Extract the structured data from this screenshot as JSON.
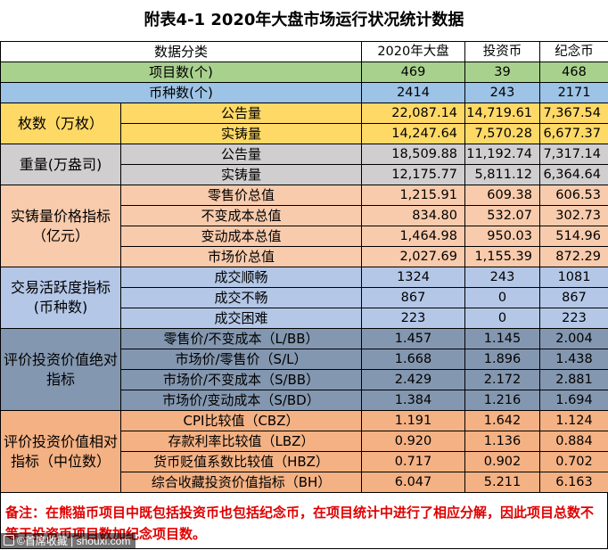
{
  "title": "附表4-1  2020年大盘市场运行状况统计数据",
  "header": {
    "category": "数据分类",
    "col1": "2020年大盘",
    "col2": "投资币",
    "col3": "纪念币"
  },
  "rows": {
    "project_count": {
      "label": "项目数(个)",
      "v": [
        "469",
        "39",
        "468"
      ]
    },
    "variety_count": {
      "label": "币种数(个)",
      "v": [
        "2414",
        "243",
        "2171"
      ]
    },
    "pieces": {
      "group": "枚数（万枚）",
      "announced": {
        "label": "公告量",
        "v": [
          "22,087.14",
          "14,719.61",
          "7,367.54"
        ]
      },
      "minted": {
        "label": "实铸量",
        "v": [
          "14,247.64",
          "7,570.28",
          "6,677.37"
        ]
      }
    },
    "weight": {
      "group": "重量(万盎司)",
      "announced": {
        "label": "公告量",
        "v": [
          "18,509.88",
          "11,192.74",
          "7,317.14"
        ]
      },
      "minted": {
        "label": "实铸量",
        "v": [
          "12,175.77",
          "5,811.12",
          "6,364.64"
        ]
      }
    },
    "price": {
      "group": "实铸量价格指标（亿元）",
      "retail": {
        "label": "零售价总值",
        "v": [
          "1,215.91",
          "609.38",
          "606.53"
        ]
      },
      "fixed_cost": {
        "label": "不变成本总值",
        "v": [
          "834.80",
          "532.07",
          "302.73"
        ]
      },
      "var_cost": {
        "label": "变动成本总值",
        "v": [
          "1,464.98",
          "950.03",
          "514.96"
        ]
      },
      "market": {
        "label": "市场价总值",
        "v": [
          "2,027.69",
          "1,155.39",
          "872.29"
        ]
      }
    },
    "activity": {
      "group": "交易活跃度指标(币种数)",
      "smooth": {
        "label": "成交顺畅",
        "v": [
          "1324",
          "243",
          "1081"
        ]
      },
      "not_smooth": {
        "label": "成交不畅",
        "v": [
          "867",
          "0",
          "867"
        ]
      },
      "difficult": {
        "label": "成交困难",
        "v": [
          "223",
          "0",
          "223"
        ]
      }
    },
    "absolute": {
      "group": "评价投资价值绝对指标",
      "lbb": {
        "label": "零售价/不变成本（L/BB）",
        "v": [
          "1.457",
          "1.145",
          "2.004"
        ]
      },
      "sl": {
        "label": "市场价/零售价（S/L）",
        "v": [
          "1.668",
          "1.896",
          "1.438"
        ]
      },
      "sbb": {
        "label": "市场价/不变成本（S/BB）",
        "v": [
          "2.429",
          "2.172",
          "2.881"
        ]
      },
      "sbd": {
        "label": "市场价/变动成本（S/BD）",
        "v": [
          "1.384",
          "1.216",
          "1.694"
        ]
      }
    },
    "relative": {
      "group": "评价投资价值相对指标（中位数）",
      "cbz": {
        "label": "CPI比较值（CBZ）",
        "v": [
          "1.191",
          "1.642",
          "1.124"
        ]
      },
      "lbz": {
        "label": "存款利率比较值（LBZ）",
        "v": [
          "0.920",
          "1.136",
          "0.884"
        ]
      },
      "hbz": {
        "label": "货币贬值系数比较值（HBZ）",
        "v": [
          "0.717",
          "0.902",
          "0.702"
        ]
      },
      "bh": {
        "label": "综合收藏投资价值指标（BH）",
        "v": [
          "6.047",
          "5.211",
          "6.163"
        ]
      }
    }
  },
  "note": "备注：在熊猫币项目中既包括投资币也包括纪念币，在项目统计中进行了相应分解，因此项目总数不等于投资币项目数加纪念项目数。",
  "watermark": "©首席收藏 | shouxi.com"
}
